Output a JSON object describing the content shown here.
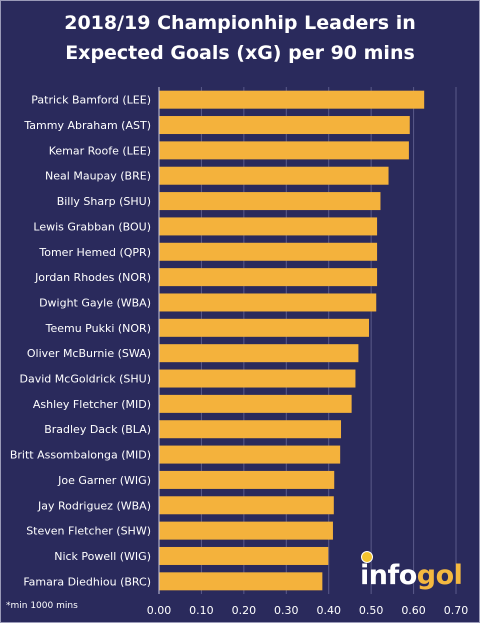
{
  "chart_data": {
    "type": "bar",
    "orientation": "horizontal",
    "title_line1": "2018/19 Championhip Leaders in",
    "title_line2": "Expected Goals (xG)  per 90 mins",
    "categories": [
      "Patrick Bamford (LEE)",
      "Tammy Abraham (AST)",
      "Kemar Roofe (LEE)",
      "Neal Maupay (BRE)",
      "Billy Sharp (SHU)",
      "Lewis Grabban (BOU)",
      "Tomer Hemed (QPR)",
      "Jordan Rhodes (NOR)",
      "Dwight Gayle (WBA)",
      "Teemu Pukki (NOR)",
      "Oliver McBurnie (SWA)",
      "David McGoldrick (SHU)",
      "Ashley Fletcher (MID)",
      "Bradley Dack (BLA)",
      "Britt Assombalonga (MID)",
      "Joe Garner (WIG)",
      "Jay Rodriguez (WBA)",
      "Steven Fletcher (SHW)",
      "Nick Powell (WIG)",
      "Famara Diedhiou (BRC)"
    ],
    "values": [
      0.625,
      0.591,
      0.589,
      0.541,
      0.522,
      0.514,
      0.514,
      0.514,
      0.512,
      0.495,
      0.47,
      0.463,
      0.454,
      0.429,
      0.427,
      0.413,
      0.412,
      0.41,
      0.399,
      0.385
    ],
    "xlim": [
      0,
      0.7
    ],
    "xticks": [
      "0.00",
      "0.10",
      "0.20",
      "0.30",
      "0.40",
      "0.50",
      "0.60",
      "0.70"
    ],
    "grid": true,
    "bar_color": "#f4b23c",
    "background_color": "#2a2a5c",
    "gridline_color": "#5a5a8a"
  },
  "footnote": "*min 1000 mins",
  "logo": {
    "part1": "info",
    "part2": "gol"
  }
}
